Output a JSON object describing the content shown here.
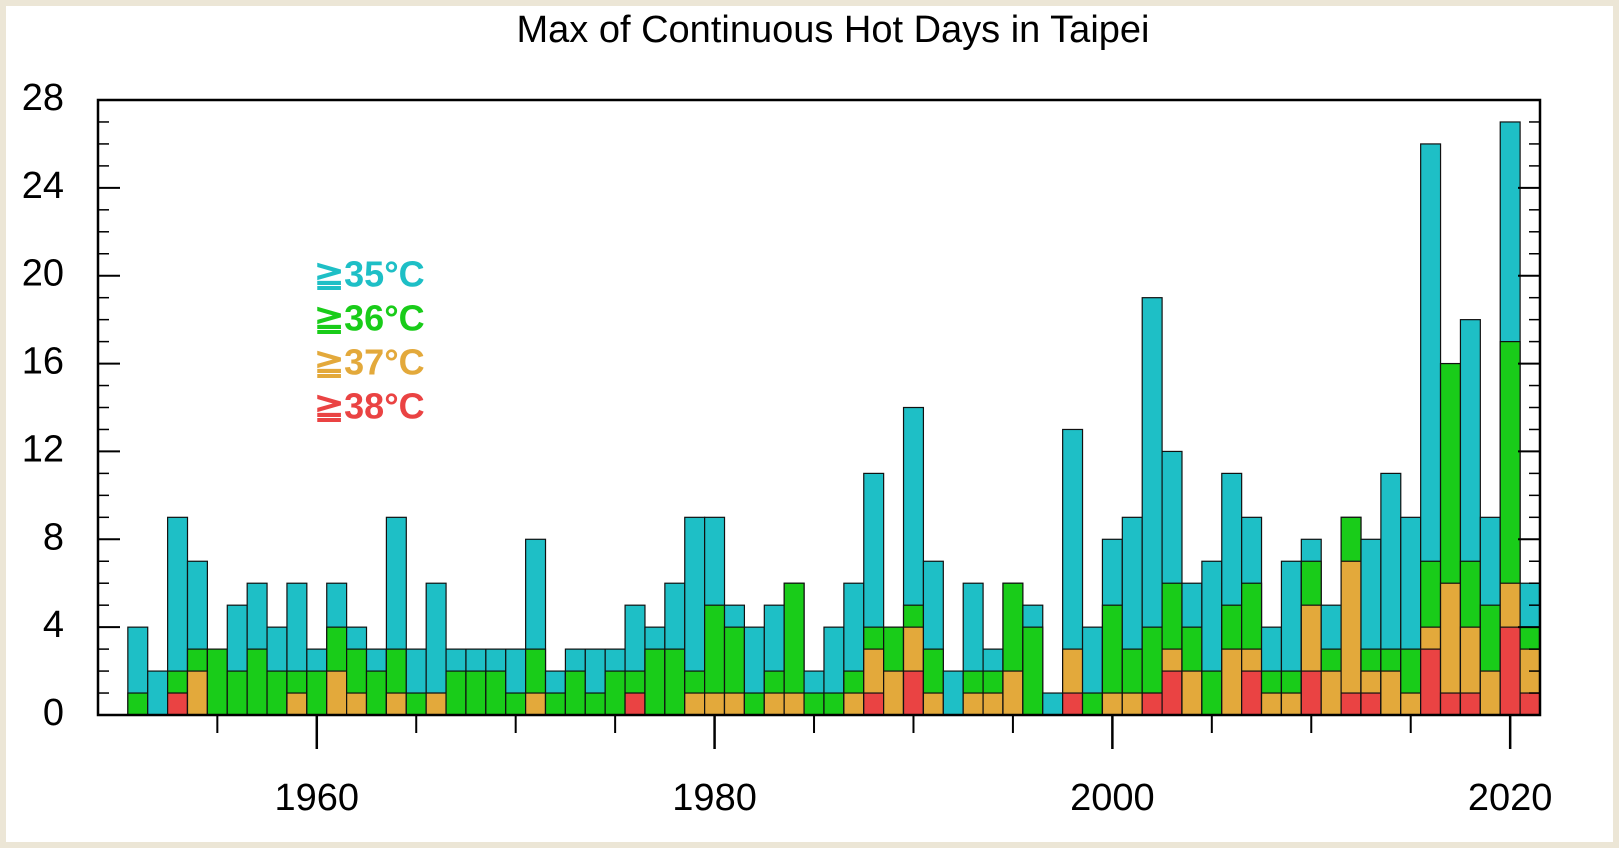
{
  "chart_data": {
    "type": "overlay_bar",
    "title": "Max of Continuous Hot Days in Taipei",
    "x": [
      1951,
      1952,
      1953,
      1954,
      1955,
      1956,
      1957,
      1958,
      1959,
      1960,
      1961,
      1962,
      1963,
      1964,
      1965,
      1966,
      1967,
      1968,
      1969,
      1970,
      1971,
      1972,
      1973,
      1974,
      1975,
      1976,
      1977,
      1978,
      1979,
      1980,
      1981,
      1982,
      1983,
      1984,
      1985,
      1986,
      1987,
      1988,
      1989,
      1990,
      1991,
      1992,
      1993,
      1994,
      1995,
      1996,
      1997,
      1998,
      1999,
      2000,
      2001,
      2002,
      2003,
      2004,
      2005,
      2006,
      2007,
      2008,
      2009,
      2010,
      2011,
      2012,
      2013,
      2014,
      2015,
      2016,
      2017,
      2018,
      2019,
      2020,
      2021
    ],
    "series": [
      {
        "name": "≧35°C",
        "color": "#1ebfc6",
        "values": [
          4,
          2,
          9,
          7,
          3,
          5,
          6,
          4,
          6,
          3,
          6,
          4,
          3,
          9,
          3,
          6,
          3,
          3,
          3,
          3,
          8,
          2,
          3,
          3,
          3,
          5,
          4,
          6,
          9,
          9,
          5,
          4,
          5,
          6,
          2,
          4,
          6,
          11,
          4,
          14,
          7,
          2,
          6,
          3,
          6,
          5,
          1,
          13,
          4,
          8,
          9,
          19,
          12,
          6,
          7,
          11,
          9,
          4,
          7,
          8,
          5,
          9,
          8,
          11,
          9,
          26,
          16,
          18,
          9,
          27,
          6
        ]
      },
      {
        "name": "≧36°C",
        "color": "#19cc19",
        "values": [
          1,
          0,
          2,
          3,
          3,
          2,
          3,
          2,
          2,
          2,
          4,
          3,
          2,
          3,
          1,
          1,
          2,
          2,
          2,
          1,
          3,
          1,
          2,
          1,
          2,
          2,
          3,
          3,
          2,
          5,
          4,
          1,
          2,
          6,
          1,
          1,
          2,
          4,
          4,
          5,
          3,
          0,
          2,
          2,
          6,
          4,
          0,
          3,
          1,
          5,
          3,
          4,
          6,
          4,
          2,
          5,
          6,
          2,
          2,
          7,
          3,
          9,
          3,
          3,
          3,
          7,
          16,
          7,
          5,
          17,
          4
        ]
      },
      {
        "name": "≧37°C",
        "color": "#e3a93b",
        "values": [
          0,
          0,
          1,
          2,
          0,
          0,
          0,
          0,
          1,
          0,
          2,
          1,
          0,
          1,
          0,
          1,
          0,
          0,
          0,
          0,
          1,
          0,
          0,
          0,
          0,
          1,
          0,
          0,
          1,
          1,
          1,
          0,
          1,
          1,
          0,
          0,
          1,
          3,
          2,
          4,
          1,
          0,
          1,
          1,
          2,
          0,
          0,
          3,
          0,
          1,
          1,
          1,
          3,
          2,
          0,
          3,
          3,
          1,
          1,
          5,
          2,
          7,
          2,
          2,
          1,
          4,
          6,
          4,
          2,
          6,
          3
        ]
      },
      {
        "name": "≧38°C",
        "color": "#ea4343",
        "values": [
          0,
          0,
          1,
          0,
          0,
          0,
          0,
          0,
          0,
          0,
          0,
          0,
          0,
          0,
          0,
          0,
          0,
          0,
          0,
          0,
          0,
          0,
          0,
          0,
          0,
          1,
          0,
          0,
          0,
          0,
          0,
          0,
          0,
          0,
          0,
          0,
          0,
          1,
          0,
          2,
          0,
          0,
          0,
          0,
          0,
          0,
          0,
          1,
          0,
          0,
          0,
          1,
          2,
          0,
          0,
          0,
          2,
          0,
          0,
          2,
          0,
          1,
          1,
          0,
          0,
          3,
          1,
          1,
          0,
          4,
          1
        ]
      }
    ],
    "xlim": [
      1949,
      2021.5
    ],
    "ylim": [
      0,
      28
    ],
    "xticks": [
      1960,
      1980,
      2000,
      2020
    ],
    "xminorticks": [
      1955,
      1965,
      1970,
      1975,
      1985,
      1990,
      1995,
      2005,
      2010,
      2015
    ],
    "yticks": [
      0,
      4,
      8,
      12,
      16,
      20,
      24,
      28
    ],
    "yminorticks": [
      1,
      2,
      3,
      5,
      6,
      7,
      9,
      10,
      11,
      13,
      14,
      15,
      17,
      18,
      19,
      21,
      22,
      23,
      25,
      26,
      27
    ]
  }
}
